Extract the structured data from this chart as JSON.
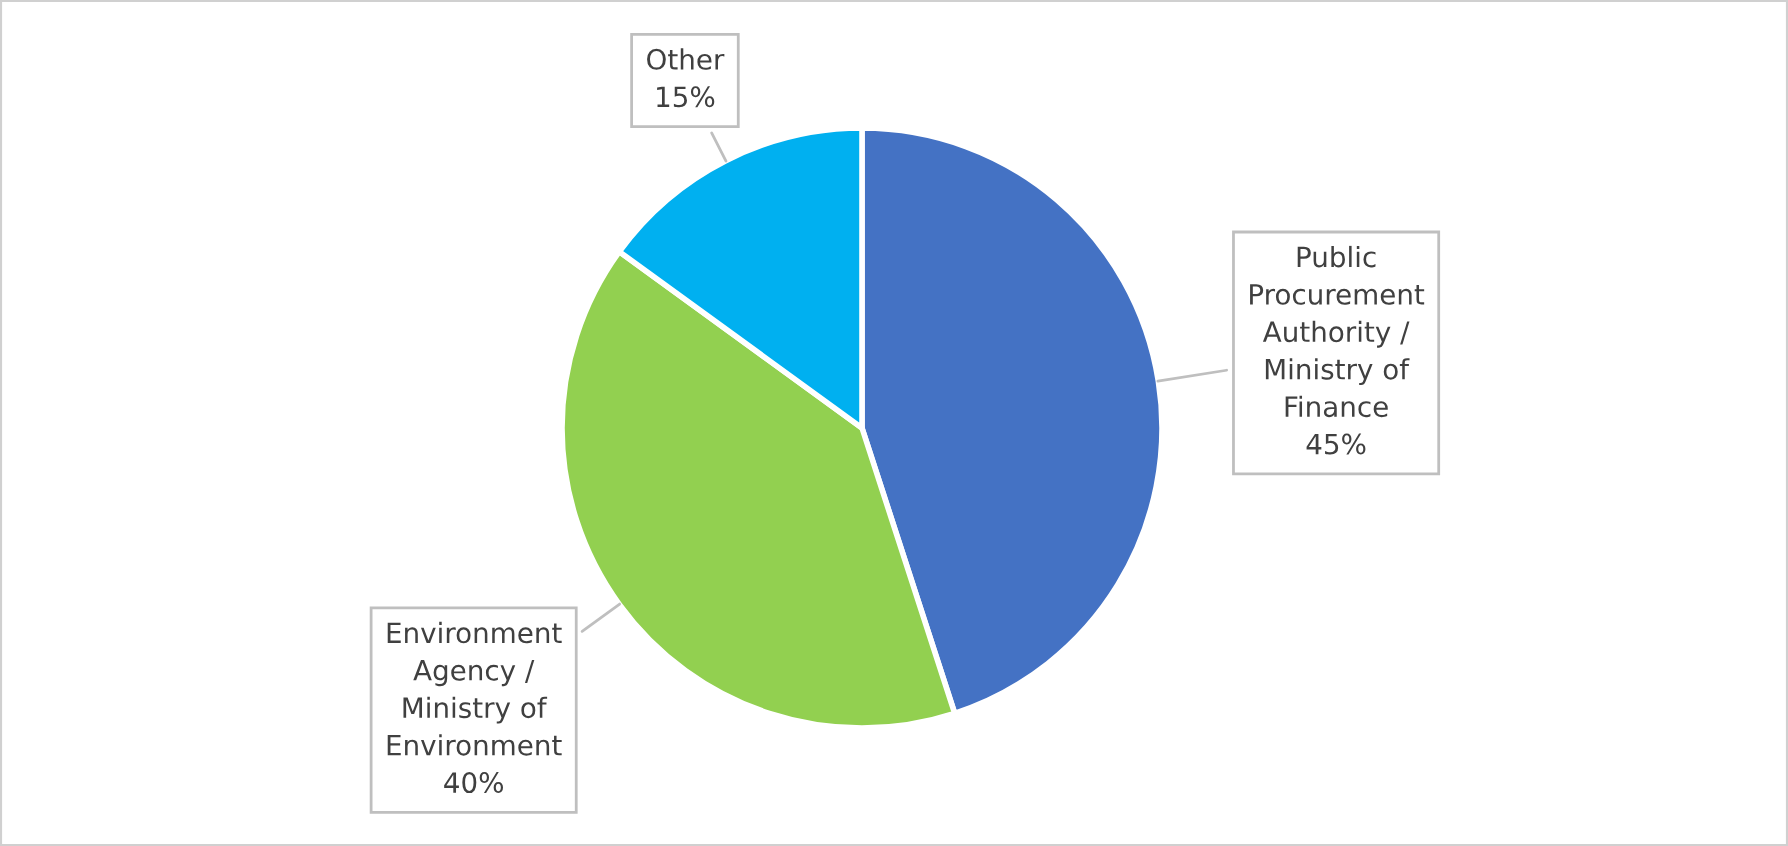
{
  "chart_data": {
    "type": "pie",
    "categories": [
      "Public Procurement Authority / Ministry of Finance",
      "Environment Agency / Ministry of Environment",
      "Other"
    ],
    "values": [
      45,
      40,
      15
    ],
    "colors": [
      "#4472c4",
      "#92d050",
      "#00b0f0"
    ],
    "value_labels": [
      "45%",
      "40%",
      "15%"
    ],
    "legend": false
  }
}
